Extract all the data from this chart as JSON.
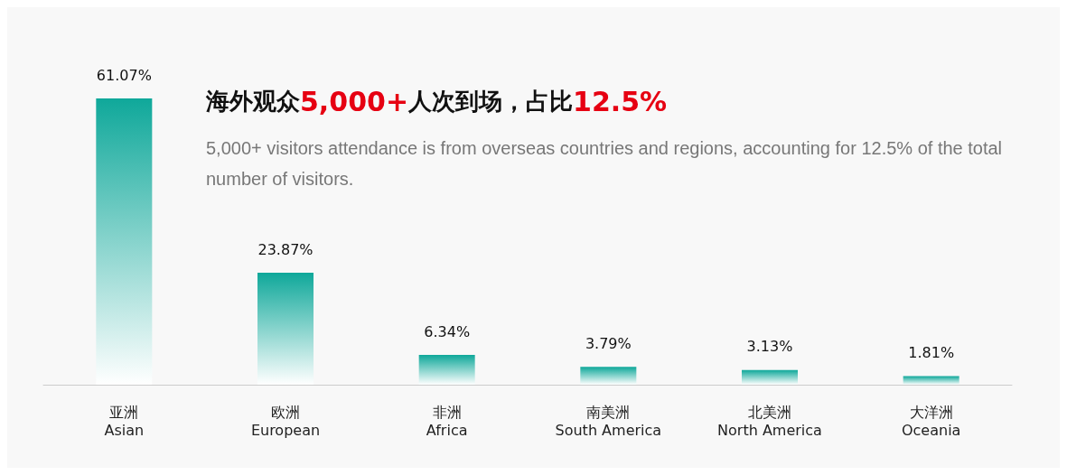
{
  "chart_data": {
    "type": "bar",
    "title": "海外观众5,000+人次到场，占比12.5%",
    "subtitle": "5,000+ visitors attendance is from overseas countries and regions, accounting for 12.5% of the total number of visitors.",
    "categories": [
      "亚洲\nAsian",
      "欧洲\nEuropean",
      "非洲\nAfrica",
      "南美洲\nSouth America",
      "北美洲\nNorth America",
      "大洋洲\nOceania"
    ],
    "values": [
      61.07,
      23.87,
      6.34,
      3.79,
      3.13,
      1.81
    ],
    "value_labels": [
      "61.07%",
      "23.87%",
      "6.34%",
      "3.79%",
      "3.13%",
      "1.81%"
    ],
    "color": "#0fa89a"
  }
}
